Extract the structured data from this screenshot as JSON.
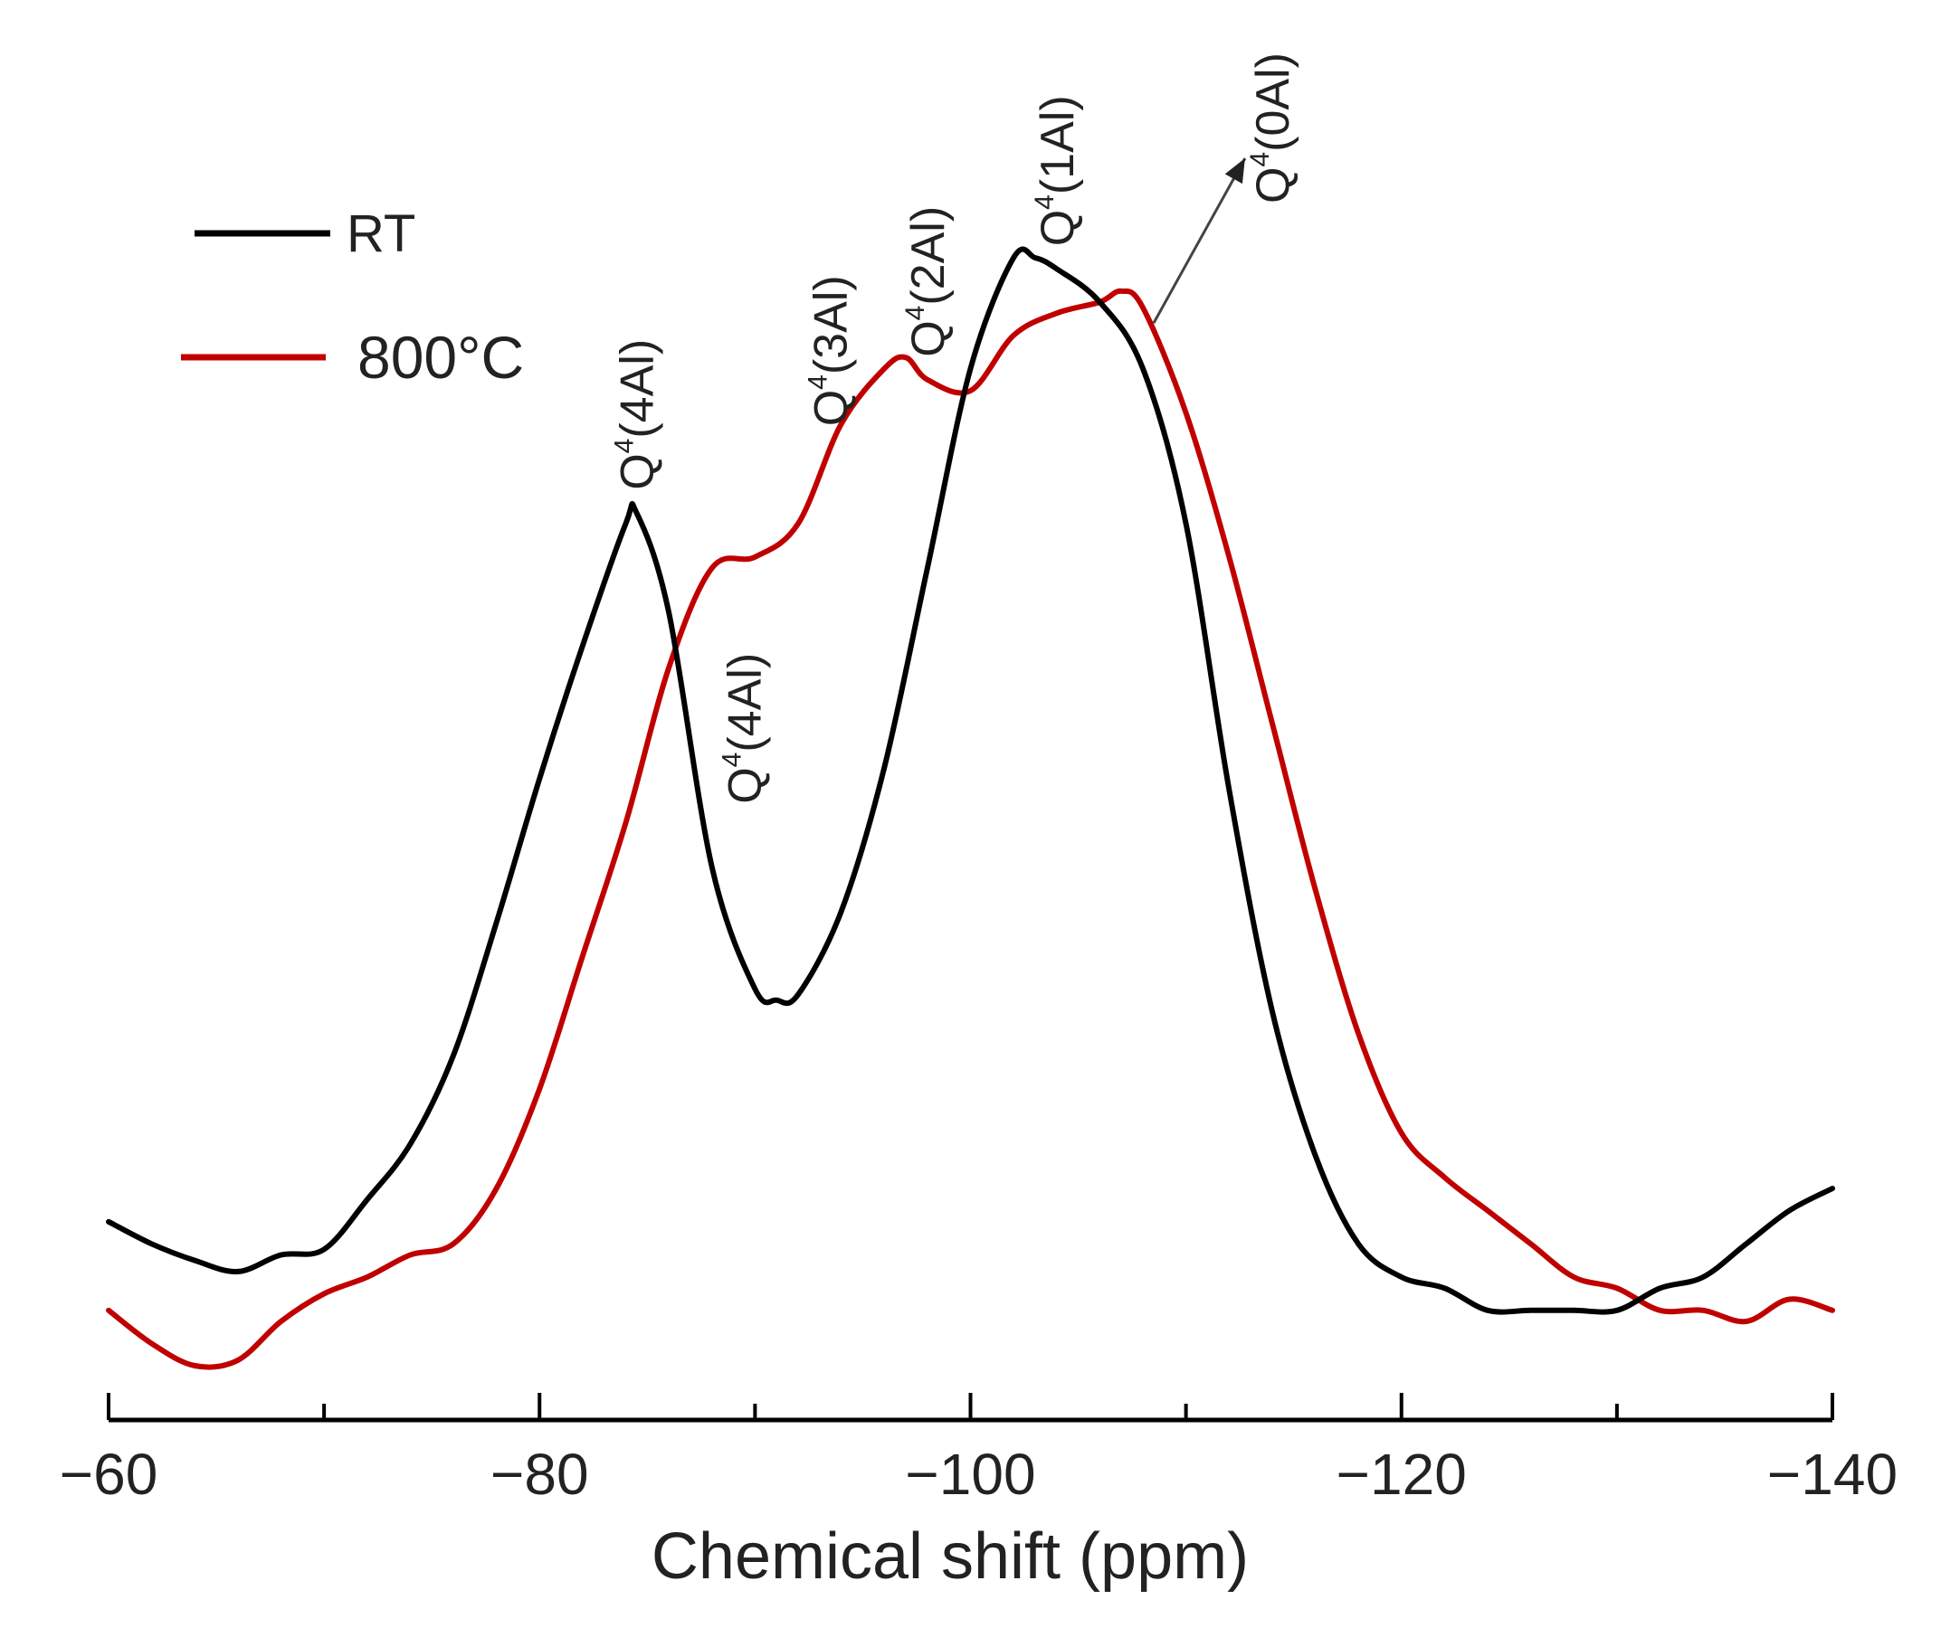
{
  "chart_data": {
    "type": "line",
    "title": "",
    "xlabel": "Chemical shift (ppm)",
    "ylabel": "",
    "xlim": [
      -60,
      -140
    ],
    "ylim": [
      0,
      1
    ],
    "xticks": [
      -60,
      -80,
      -100,
      -120,
      -140
    ],
    "xtick_labels": [
      "−60",
      "−80",
      "−100",
      "−120",
      "−140"
    ],
    "legend": {
      "location": "top-left"
    },
    "series": [
      {
        "name": "RT",
        "color": "#000000",
        "x": [
          -60,
          -62,
          -64,
          -66,
          -68,
          -70,
          -72,
          -74,
          -76,
          -78,
          -80,
          -82,
          -84,
          -84.5,
          -86,
          -88,
          -90,
          -91,
          -92,
          -94,
          -96,
          -98,
          -100,
          -102,
          -103,
          -104,
          -106,
          -108,
          -110,
          -112,
          -114,
          -116,
          -118,
          -120,
          -122,
          -124,
          -126,
          -128,
          -130,
          -132,
          -134,
          -136,
          -138,
          -140
        ],
        "y": [
          0.13,
          0.11,
          0.095,
          0.085,
          0.1,
          0.105,
          0.15,
          0.2,
          0.28,
          0.4,
          0.53,
          0.65,
          0.76,
          0.77,
          0.68,
          0.45,
          0.34,
          0.33,
          0.335,
          0.41,
          0.54,
          0.72,
          0.9,
          1.0,
          1.0,
          0.99,
          0.96,
          0.9,
          0.76,
          0.52,
          0.32,
          0.19,
          0.11,
          0.08,
          0.07,
          0.05,
          0.05,
          0.05,
          0.05,
          0.07,
          0.08,
          0.11,
          0.14,
          0.16
        ]
      },
      {
        "name": "800°C",
        "color": "#c00000",
        "x": [
          -60,
          -62,
          -64,
          -66,
          -68,
          -70,
          -72,
          -74,
          -76,
          -78,
          -80,
          -82,
          -84,
          -86,
          -88,
          -90,
          -92,
          -94,
          -96,
          -97,
          -98,
          -100,
          -102,
          -104,
          -106,
          -107,
          -108,
          -110,
          -112,
          -114,
          -116,
          -118,
          -120,
          -122,
          -124,
          -126,
          -128,
          -130,
          -132,
          -134,
          -136,
          -138,
          -140
        ],
        "y": [
          0.05,
          0.02,
          0.0,
          0.005,
          0.04,
          0.065,
          0.08,
          0.1,
          0.11,
          0.16,
          0.25,
          0.37,
          0.49,
          0.63,
          0.72,
          0.73,
          0.76,
          0.85,
          0.9,
          0.91,
          0.89,
          0.88,
          0.93,
          0.95,
          0.96,
          0.97,
          0.955,
          0.86,
          0.73,
          0.58,
          0.43,
          0.3,
          0.21,
          0.17,
          0.14,
          0.11,
          0.08,
          0.07,
          0.05,
          0.05,
          0.04,
          0.06,
          0.05
        ]
      }
    ],
    "annotations": [
      {
        "base": "Q",
        "sup": "4",
        "tail": "(4Al)",
        "x": -84.5,
        "series": "RT"
      },
      {
        "base": "Q",
        "sup": "4",
        "tail": "(4Al)",
        "x": -89.5,
        "series": "800°C"
      },
      {
        "base": "Q",
        "sup": "4",
        "tail": "(3Al)",
        "x": -93.5,
        "series": "800°C"
      },
      {
        "base": "Q",
        "sup": "4",
        "tail": "(2Al)",
        "x": -98,
        "series": "800°C"
      },
      {
        "base": "Q",
        "sup": "4",
        "tail": "(1Al)",
        "x": -104,
        "series": "RT"
      },
      {
        "base": "Q",
        "sup": "4",
        "tail": "(0Al)",
        "x": -114,
        "series": "800°C"
      }
    ]
  }
}
